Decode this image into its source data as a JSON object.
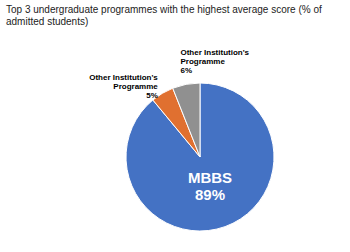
{
  "chart_data": {
    "type": "pie",
    "title": "Top 3 undergraduate programmes with the highest average score (% of admitted students)",
    "categories": [
      "MBBS",
      "Other Institution's\nProgramme",
      "Other Institution's\nProgramme"
    ],
    "values": [
      89,
      5,
      6
    ],
    "value_labels": [
      "89%",
      "5%",
      "6%"
    ],
    "colors": [
      "#4472C4",
      "#E07030",
      "#909090"
    ],
    "data_labels": true
  }
}
